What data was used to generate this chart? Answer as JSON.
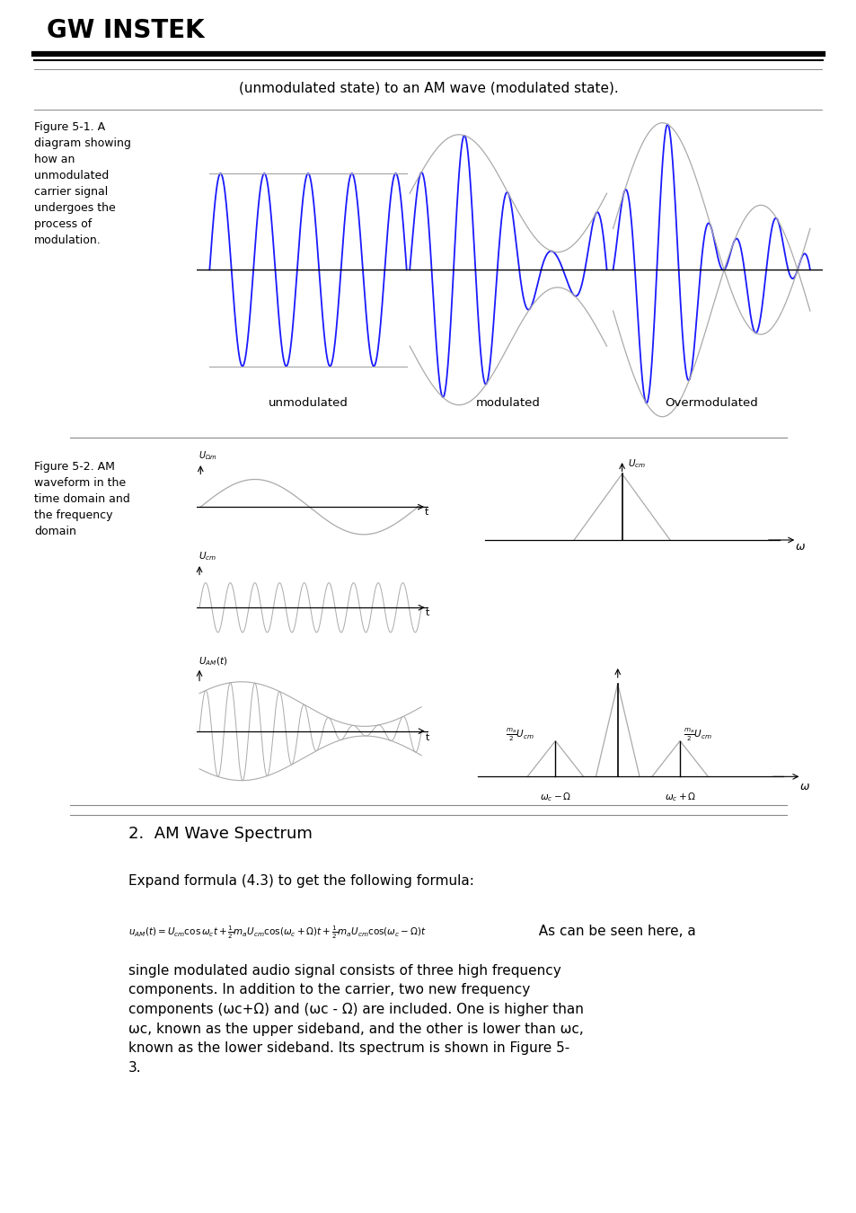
{
  "title_text": "(unmodulated state) to an AM wave (modulated state).",
  "fig1_caption": "Figure 5-1. A\ndiagram showing\nhow an\nunmodulated\ncarrier signal\nundergoes the\nprocess of\nmodulation.",
  "fig2_caption": "Figure 5-2. AM\nwaveform in the\ntime domain and\nthe frequency\ndomain",
  "label_unmodulated": "unmodulated",
  "label_modulated": "modulated",
  "label_overmodulated": "Overmodulated",
  "section_title": "2.  AM Wave Spectrum",
  "expand_text": "Expand formula (4.3) to get the following formula:",
  "as_can_be": "  As can be seen here, a",
  "body_text1": "single modulated audio signal consists of three high frequency\ncomponents. In addition to the carrier, two new frequency\ncomponents (ωc+Ω) and (ωc - Ω) are included. One is higher than\nωc, known as the upper sideband, and the other is lower than ωc,\nknown as the lower sideband. Its spectrum is shown in Figure 5-\n3.",
  "bg_color": "#ffffff",
  "carrier_color": "#1a1aff",
  "envelope_color": "#aaaaaa",
  "wave_color": "#888888",
  "logo_text": "GW INSTEK"
}
